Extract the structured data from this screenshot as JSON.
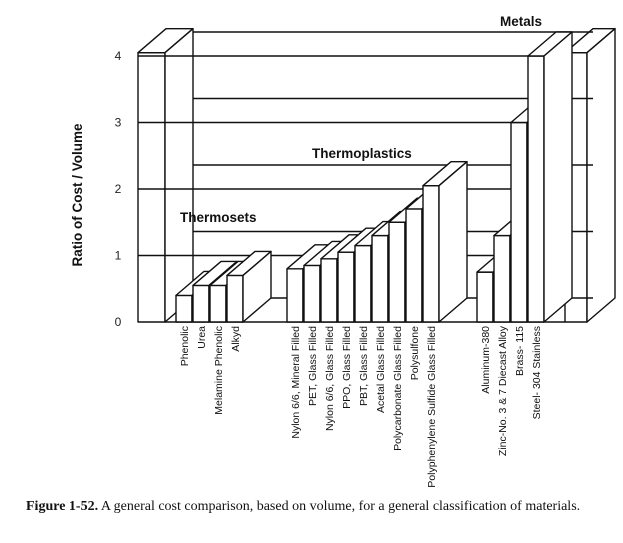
{
  "chart_data": {
    "type": "bar",
    "style": "3d",
    "title": "",
    "xlabel": "",
    "ylabel": "Ratio of Cost / Volume",
    "ylim": [
      0,
      4
    ],
    "yticks": [
      "0",
      "1",
      "2",
      "3",
      "4"
    ],
    "groups": [
      {
        "name": "Thermosets",
        "categories": [
          "Phenolic",
          "Urea",
          "Melamine Phenolic",
          "Alkyd"
        ],
        "values": [
          0.4,
          0.55,
          0.55,
          0.7
        ]
      },
      {
        "name": "Thermoplastics",
        "categories": [
          "Nylon 6/6, Mineral Filled",
          "PET, Glass Filled",
          "Nylon 6/6, Glass Filled",
          "PPO, Glass Filled",
          "PBT, Glass Filled",
          "Acetal Glass Filled",
          "Polycarbonate Glass Filled",
          "Polysulfone",
          "Polyphenylene Sulfide Glass Filled"
        ],
        "values": [
          0.8,
          0.85,
          0.95,
          1.05,
          1.15,
          1.3,
          1.5,
          1.7,
          2.05
        ]
      },
      {
        "name": "Metals",
        "categories": [
          "Aluminum-380",
          "Zinc-No. 3 & 7 Diecast Alloy",
          "Brass- 115",
          "Steel- 304 Stainless"
        ],
        "values": [
          0.75,
          1.3,
          3.0,
          4.0
        ]
      }
    ]
  },
  "caption": {
    "label": "Figure 1-52.",
    "text": "A general cost comparison, based on volume, for a general classification of materials."
  }
}
